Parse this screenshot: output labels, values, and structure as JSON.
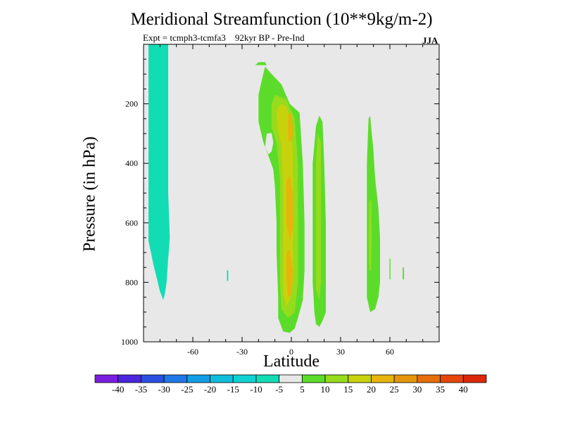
{
  "header": {
    "title": "Meridional Streamfunction (10**9kg/m-2)",
    "subtitle_left": "Expt = tcmph3-tcmfa3",
    "subtitle_right": "92kyr BP - Pre-Ind",
    "season": "JJA"
  },
  "chart_data": {
    "type": "heatmap",
    "subtype": "filled-contour",
    "title": "Meridional Streamfunction (10**9kg/m-2)",
    "xlabel": "Latitude",
    "ylabel": "Pressure (in hPa)",
    "xlim": [
      -90,
      90
    ],
    "ylim": [
      1000,
      0
    ],
    "y_inverted": true,
    "grid": false,
    "background_color": "#e8e8e8",
    "x_ticks": [
      -60,
      -30,
      0,
      30,
      60
    ],
    "x_tick_labels": [
      "-60",
      "-30",
      "0",
      "30",
      "60"
    ],
    "y_ticks": [
      200,
      400,
      600,
      800,
      1000
    ],
    "y_tick_labels": [
      "200",
      "400",
      "600",
      "800",
      "1000"
    ],
    "colorbar": {
      "position": "bottom",
      "levels": [
        -40,
        -35,
        -30,
        -25,
        -20,
        -15,
        -10,
        -5,
        5,
        10,
        15,
        20,
        25,
        30,
        35,
        40
      ],
      "labels": [
        "-40",
        "-35",
        "-30",
        "-25",
        "-20",
        "-15",
        "-10",
        "-5",
        "5",
        "10",
        "15",
        "20",
        "25",
        "30",
        "35",
        "40"
      ],
      "colors": [
        "#7a1ee0",
        "#4a26dc",
        "#2a4fe0",
        "#1e78e6",
        "#129ee4",
        "#10bedc",
        "#10d2d2",
        "#12dcb4",
        "#e8e8e8",
        "#5cdc2a",
        "#96dc1c",
        "#c8d20c",
        "#e6b40c",
        "#e6960c",
        "#e66e0c",
        "#e6460a",
        "#dc280a"
      ]
    },
    "regions": [
      {
        "name": "southern negative cell",
        "bin": [
          -10,
          -5
        ],
        "color": "#12dcb4",
        "points": [
          [
            -87,
            0
          ],
          [
            -75,
            0
          ],
          [
            -75,
            250
          ],
          [
            -75,
            500
          ],
          [
            -74,
            650
          ],
          [
            -75,
            720
          ],
          [
            -76,
            800
          ],
          [
            -77,
            838
          ],
          [
            -78,
            860
          ],
          [
            -80,
            830
          ],
          [
            -84,
            740
          ],
          [
            -87,
            660
          ]
        ]
      },
      {
        "name": "small negative patch",
        "bin": [
          -10,
          -5
        ],
        "color": "#12dcb4",
        "points": [
          [
            -39.2,
            760
          ],
          [
            -38.4,
            760
          ],
          [
            -38.4,
            795
          ],
          [
            -39.2,
            795
          ]
        ]
      },
      {
        "name": "tropical cell outer",
        "bin": [
          5,
          10
        ],
        "color": "#5cdc2a",
        "points": [
          [
            -16,
            75
          ],
          [
            -12,
            100
          ],
          [
            -6,
            135
          ],
          [
            -1,
            200
          ],
          [
            5,
            230
          ],
          [
            7,
            400
          ],
          [
            8,
            600
          ],
          [
            8,
            760
          ],
          [
            7,
            860
          ],
          [
            4,
            920
          ],
          [
            2,
            955
          ],
          [
            -1,
            970
          ],
          [
            -5,
            965
          ],
          [
            -8,
            920
          ],
          [
            -8,
            850
          ],
          [
            -9,
            700
          ],
          [
            -9,
            600
          ],
          [
            -10,
            480
          ],
          [
            -11,
            420
          ],
          [
            -13,
            390
          ],
          [
            -15,
            360
          ],
          [
            -17,
            330
          ],
          [
            -20,
            260
          ],
          [
            -20,
            170
          ],
          [
            -18,
            120
          ]
        ]
      },
      {
        "name": "tropical cell interior gap",
        "bin": [
          -5,
          5
        ],
        "color": "#e8e8e8",
        "points": [
          [
            -15,
            300
          ],
          [
            -12,
            298
          ],
          [
            -11,
            330
          ],
          [
            -12,
            360
          ],
          [
            -14,
            370
          ],
          [
            -16,
            345
          ]
        ]
      },
      {
        "name": "northern subtropical cell",
        "bin": [
          5,
          10
        ],
        "color": "#5cdc2a",
        "points": [
          [
            15,
            275
          ],
          [
            17,
            240
          ],
          [
            19,
            260
          ],
          [
            20,
            400
          ],
          [
            21,
            600
          ],
          [
            21,
            800
          ],
          [
            21,
            900
          ],
          [
            19,
            930
          ],
          [
            17,
            950
          ],
          [
            15,
            940
          ],
          [
            14,
            900
          ],
          [
            13,
            800
          ],
          [
            13,
            600
          ],
          [
            13,
            400
          ]
        ]
      },
      {
        "name": "tropical 10-15 band",
        "bin": [
          10,
          15
        ],
        "color": "#96dc1c",
        "points": [
          [
            -12,
            200
          ],
          [
            -10,
            170
          ],
          [
            -3,
            185
          ],
          [
            2,
            250
          ],
          [
            4,
            400
          ],
          [
            4,
            600
          ],
          [
            4,
            800
          ],
          [
            2,
            900
          ],
          [
            -2,
            920
          ],
          [
            -6,
            890
          ],
          [
            -7,
            800
          ],
          [
            -7,
            600
          ],
          [
            -7,
            450
          ],
          [
            -9,
            330
          ],
          [
            -12,
            280
          ]
        ]
      },
      {
        "name": "subtropical 10-15 band",
        "bin": [
          10,
          15
        ],
        "color": "#96dc1c",
        "points": [
          [
            16,
            300
          ],
          [
            18,
            330
          ],
          [
            18,
            600
          ],
          [
            18,
            800
          ],
          [
            17,
            860
          ],
          [
            15,
            820
          ],
          [
            15,
            600
          ],
          [
            15,
            400
          ]
        ]
      },
      {
        "name": "tropical 15-20 band",
        "bin": [
          15,
          20
        ],
        "color": "#c8d20c",
        "points": [
          [
            -9,
            220
          ],
          [
            -6,
            200
          ],
          [
            -3,
            210
          ],
          [
            0,
            260
          ],
          [
            1,
            400
          ],
          [
            1,
            600
          ],
          [
            1,
            800
          ],
          [
            -1,
            860
          ],
          [
            -3,
            880
          ],
          [
            -5,
            840
          ],
          [
            -5,
            700
          ],
          [
            -5,
            500
          ],
          [
            -6,
            340
          ],
          [
            -8,
            290
          ]
        ]
      },
      {
        "name": "upper 20-25 core",
        "bin": [
          20,
          25
        ],
        "color": "#e6b40c",
        "points": [
          [
            -2,
            240
          ],
          [
            0,
            230
          ],
          [
            1,
            300
          ],
          [
            0,
            330
          ],
          [
            -2,
            320
          ]
        ]
      },
      {
        "name": "mid 20-25 core",
        "bin": [
          20,
          25
        ],
        "color": "#e6b40c",
        "points": [
          [
            -3,
            460
          ],
          [
            -1,
            440
          ],
          [
            1,
            500
          ],
          [
            1,
            620
          ],
          [
            -1,
            660
          ],
          [
            -3,
            600
          ]
        ]
      },
      {
        "name": "lower 20-25 core",
        "bin": [
          20,
          25
        ],
        "color": "#e6b40c",
        "points": [
          [
            -3,
            700
          ],
          [
            -1,
            690
          ],
          [
            1,
            760
          ],
          [
            0,
            840
          ],
          [
            -2,
            850
          ],
          [
            -3,
            780
          ]
        ]
      },
      {
        "name": "northern midlatitude cell",
        "bin": [
          5,
          10
        ],
        "color": "#5cdc2a",
        "points": [
          [
            47,
            250
          ],
          [
            48,
            240
          ],
          [
            49,
            300
          ],
          [
            50,
            360
          ],
          [
            51,
            450
          ],
          [
            53,
            550
          ],
          [
            54,
            650
          ],
          [
            54,
            800
          ],
          [
            53,
            850
          ],
          [
            51,
            890
          ],
          [
            48,
            900
          ],
          [
            46,
            850
          ],
          [
            46,
            600
          ],
          [
            46,
            400
          ]
        ]
      },
      {
        "name": "midlatitude 10-15 core",
        "bin": [
          10,
          15
        ],
        "color": "#96dc1c",
        "points": [
          [
            47.5,
            530
          ],
          [
            48.5,
            520
          ],
          [
            49,
            620
          ],
          [
            48.5,
            760
          ],
          [
            47.5,
            760
          ],
          [
            47,
            640
          ]
        ]
      },
      {
        "name": "small patch 60N",
        "bin": [
          5,
          10
        ],
        "color": "#5cdc2a",
        "points": [
          [
            59.8,
            720
          ],
          [
            60.4,
            720
          ],
          [
            60.4,
            790
          ],
          [
            59.8,
            790
          ]
        ]
      },
      {
        "name": "small patch 68N",
        "bin": [
          5,
          10
        ],
        "color": "#5cdc2a",
        "points": [
          [
            67.8,
            750
          ],
          [
            68.6,
            750
          ],
          [
            68.6,
            790
          ],
          [
            67.8,
            790
          ]
        ]
      },
      {
        "name": "upper edge contour",
        "bin": [
          5,
          10
        ],
        "color": "#5cdc2a",
        "points": [
          [
            -22,
            70
          ],
          [
            -20,
            60
          ],
          [
            -16,
            60
          ],
          [
            -15,
            70
          ]
        ]
      }
    ]
  }
}
